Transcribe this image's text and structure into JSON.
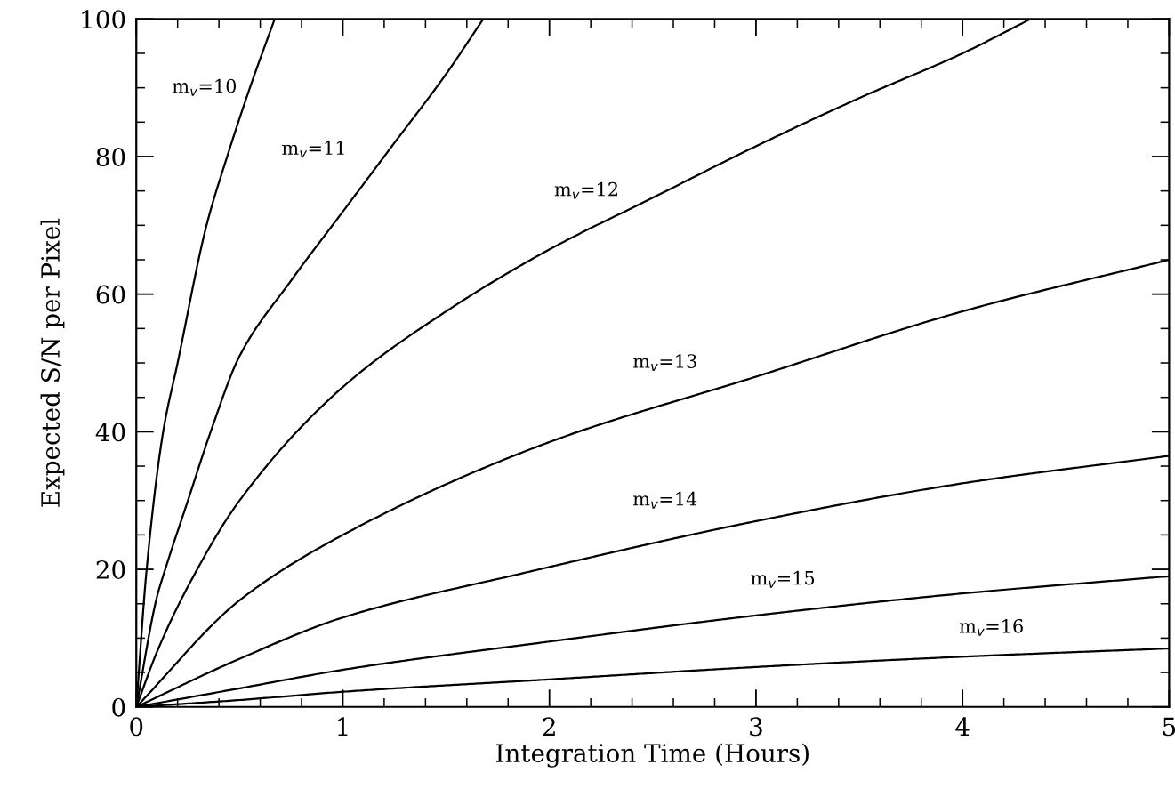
{
  "chart_data": {
    "type": "line",
    "xlabel": "Integration Time (Hours)",
    "ylabel": "Expected S/N per Pixel",
    "xlim": [
      0,
      5
    ],
    "ylim": [
      0,
      100
    ],
    "xticks": [
      0,
      {
        "value": 0.2,
        "label": null
      },
      {
        "value": 0.4,
        "label": null
      },
      {
        "value": 0.6,
        "label": null
      },
      {
        "value": 0.8,
        "label": null
      },
      1,
      {
        "value": 1.2,
        "label": null
      },
      {
        "value": 1.4,
        "label": null
      },
      {
        "value": 1.6,
        "label": null
      },
      {
        "value": 1.8,
        "label": null
      },
      2,
      {
        "value": 2.2,
        "label": null
      },
      {
        "value": 2.4,
        "label": null
      },
      {
        "value": 2.6,
        "label": null
      },
      {
        "value": 2.8,
        "label": null
      },
      3,
      {
        "value": 3.2,
        "label": null
      },
      {
        "value": 3.4,
        "label": null
      },
      {
        "value": 3.6,
        "label": null
      },
      {
        "value": 3.8,
        "label": null
      },
      4,
      {
        "value": 4.2,
        "label": null
      },
      {
        "value": 4.4,
        "label": null
      },
      {
        "value": 4.6,
        "label": null
      },
      {
        "value": 4.8,
        "label": null
      },
      5
    ],
    "yticks": [
      0,
      {
        "value": 5,
        "label": null
      },
      {
        "value": 10,
        "label": null
      },
      {
        "value": 15,
        "label": null
      },
      20,
      {
        "value": 25,
        "label": null
      },
      {
        "value": 30,
        "label": null
      },
      {
        "value": 35,
        "label": null
      },
      40,
      {
        "value": 45,
        "label": null
      },
      {
        "value": 50,
        "label": null
      },
      {
        "value": 55,
        "label": null
      },
      60,
      {
        "value": 65,
        "label": null
      },
      {
        "value": 70,
        "label": null
      },
      {
        "value": 75,
        "label": null
      },
      80,
      {
        "value": 85,
        "label": null
      },
      {
        "value": 90,
        "label": null
      },
      {
        "value": 95,
        "label": null
      },
      100
    ],
    "grid": false,
    "legend": false,
    "marker": "none",
    "line_style": "solid",
    "series": [
      {
        "name": "m$_{v}$=10",
        "color": "#000000",
        "x": [
          0,
          0.05,
          0.13,
          0.2,
          0.34,
          0.44,
          0.55,
          0.67
        ],
        "values": [
          0,
          20,
          40,
          50,
          70,
          80,
          90,
          100
        ]
      },
      {
        "name": "m$_{v}$=11",
        "color": "#000000",
        "x": [
          0,
          0.1,
          0.14,
          0.25,
          0.36,
          0.5,
          0.75,
          1,
          1.25,
          1.5,
          1.68
        ],
        "values": [
          0,
          16,
          20,
          30,
          40,
          51,
          62,
          72,
          82,
          92,
          100
        ]
      },
      {
        "name": "m$_{v}$=12",
        "color": "#000000",
        "x": [
          0,
          0.1,
          0.25,
          0.5,
          1,
          1.5,
          2,
          2.5,
          3,
          3.5,
          4,
          4.33
        ],
        "values": [
          0,
          8,
          17.5,
          30,
          46.5,
          57.5,
          66.5,
          74,
          81.5,
          88.5,
          95,
          100
        ]
      },
      {
        "name": "m$_{v}$=13",
        "color": "#000000",
        "x": [
          0,
          0.5,
          1,
          2,
          3,
          4,
          5
        ],
        "values": [
          0,
          15.5,
          25,
          38.5,
          48,
          57.5,
          65
        ]
      },
      {
        "name": "m$_{v}$=14",
        "color": "#000000",
        "x": [
          0,
          0.5,
          1,
          1.88,
          3,
          4,
          5
        ],
        "values": [
          0,
          7,
          13,
          19.5,
          27,
          32.5,
          36.5
        ]
      },
      {
        "name": "m$_{v}$=15",
        "color": "#000000",
        "x": [
          0,
          0.5,
          1,
          2,
          3,
          4,
          5
        ],
        "values": [
          0,
          2.7,
          5.4,
          9.5,
          13.3,
          16.5,
          19
        ]
      },
      {
        "name": "m$_{v}$=16",
        "color": "#000000",
        "x": [
          0,
          0.5,
          1,
          2,
          3,
          4,
          5
        ],
        "values": [
          0,
          1,
          2.2,
          4,
          5.8,
          7.3,
          8.5
        ]
      }
    ]
  }
}
